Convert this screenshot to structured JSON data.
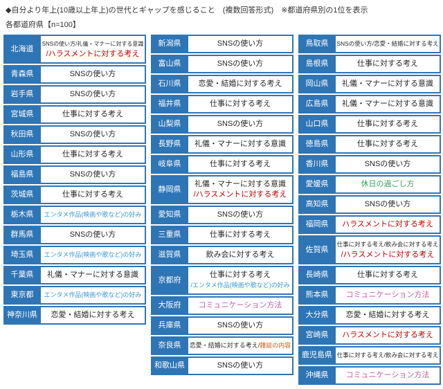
{
  "header": {
    "title": "◆自分より年上(10歳以上年上)の世代とギャップを感じること　(複数回答形式)　※都道府県別の1位を表示",
    "subtitle": "各都道府県【n=100】"
  },
  "palette": {
    "default": "#262626",
    "red": "#c00000",
    "blue": "#3399d6",
    "pink": "#c0609f",
    "orange": "#c55a11",
    "green": "#2fa05a",
    "header_bg": "#2e75b6",
    "border": "#2e75b6"
  },
  "chart_data": {
    "type": "table",
    "title": "自分より年上(10歳以上年上)の世代とギャップを感じること (複数回答形式) 都道府県別の1位",
    "sample_note": "各都道府県【n=100】",
    "columns": [
      {
        "rows": [
          {
            "pref": "北海道",
            "lines": [
              [
                {
                  "t": "SNSの使い方/礼儀・マナーに対する意識",
                  "c": "default"
                }
              ],
              [
                {
                  "t": "/ハラスメントに対する考え",
                  "c": "red"
                }
              ]
            ]
          },
          {
            "pref": "青森県",
            "lines": [
              [
                {
                  "t": "SNSの使い方",
                  "c": "default"
                }
              ]
            ]
          },
          {
            "pref": "岩手県",
            "lines": [
              [
                {
                  "t": "SNSの使い方",
                  "c": "default"
                }
              ]
            ]
          },
          {
            "pref": "宮城県",
            "lines": [
              [
                {
                  "t": "仕事に対する考え",
                  "c": "default"
                }
              ]
            ]
          },
          {
            "pref": "秋田県",
            "lines": [
              [
                {
                  "t": "SNSの使い方",
                  "c": "default"
                }
              ]
            ]
          },
          {
            "pref": "山形県",
            "lines": [
              [
                {
                  "t": "仕事に対する考え",
                  "c": "default"
                }
              ]
            ]
          },
          {
            "pref": "福島県",
            "lines": [
              [
                {
                  "t": "SNSの使い方",
                  "c": "default"
                }
              ]
            ]
          },
          {
            "pref": "茨城県",
            "lines": [
              [
                {
                  "t": "仕事に対する考え",
                  "c": "default"
                }
              ]
            ]
          },
          {
            "pref": "栃木県",
            "lines": [
              [
                {
                  "t": "エンタメ作品(映画や歌など)の好み",
                  "c": "blue"
                }
              ]
            ]
          },
          {
            "pref": "群馬県",
            "lines": [
              [
                {
                  "t": "SNSの使い方",
                  "c": "default"
                }
              ]
            ]
          },
          {
            "pref": "埼玉県",
            "lines": [
              [
                {
                  "t": "エンタメ作品(映画や歌など)の好み",
                  "c": "blue"
                }
              ]
            ]
          },
          {
            "pref": "千葉県",
            "lines": [
              [
                {
                  "t": "礼儀・マナーに対する意識",
                  "c": "default"
                }
              ]
            ]
          },
          {
            "pref": "東京都",
            "lines": [
              [
                {
                  "t": "エンタメ作品(映画や歌など)の好み",
                  "c": "blue"
                }
              ]
            ]
          },
          {
            "pref": "神奈川県",
            "lines": [
              [
                {
                  "t": "恋愛・結婚に対する考え",
                  "c": "default"
                }
              ]
            ]
          }
        ]
      },
      {
        "rows": [
          {
            "pref": "新潟県",
            "lines": [
              [
                {
                  "t": "SNSの使い方",
                  "c": "default"
                }
              ]
            ]
          },
          {
            "pref": "富山県",
            "lines": [
              [
                {
                  "t": "SNSの使い方",
                  "c": "default"
                }
              ]
            ]
          },
          {
            "pref": "石川県",
            "lines": [
              [
                {
                  "t": "恋愛・結婚に対する考え",
                  "c": "default"
                }
              ]
            ]
          },
          {
            "pref": "福井県",
            "lines": [
              [
                {
                  "t": "仕事に対する考え",
                  "c": "default"
                }
              ]
            ]
          },
          {
            "pref": "山梨県",
            "lines": [
              [
                {
                  "t": "SNSの使い方",
                  "c": "default"
                }
              ]
            ]
          },
          {
            "pref": "長野県",
            "lines": [
              [
                {
                  "t": "礼儀・マナーに対する意識",
                  "c": "default"
                }
              ]
            ]
          },
          {
            "pref": "岐阜県",
            "lines": [
              [
                {
                  "t": "仕事に対する考え",
                  "c": "default"
                }
              ]
            ]
          },
          {
            "pref": "静岡県",
            "lines": [
              [
                {
                  "t": "礼儀・マナーに対する意識",
                  "c": "default"
                }
              ],
              [
                {
                  "t": "/ハラスメントに対する考え",
                  "c": "red"
                }
              ]
            ]
          },
          {
            "pref": "愛知県",
            "lines": [
              [
                {
                  "t": "SNSの使い方",
                  "c": "default"
                }
              ]
            ]
          },
          {
            "pref": "三重県",
            "lines": [
              [
                {
                  "t": "仕事に対する考え",
                  "c": "default"
                }
              ]
            ]
          },
          {
            "pref": "滋賀県",
            "lines": [
              [
                {
                  "t": "飲み会に対する考え",
                  "c": "default"
                }
              ]
            ]
          },
          {
            "pref": "京都府",
            "lines": [
              [
                {
                  "t": "仕事に対する考え",
                  "c": "default"
                }
              ],
              [
                {
                  "t": "/エンタメ作品(映画や歌など)の好み",
                  "c": "blue"
                }
              ]
            ]
          },
          {
            "pref": "大阪府",
            "lines": [
              [
                {
                  "t": "コミュニケーション方法",
                  "c": "pink"
                }
              ]
            ]
          },
          {
            "pref": "兵庫県",
            "lines": [
              [
                {
                  "t": "SNSの使い方",
                  "c": "default"
                }
              ]
            ]
          },
          {
            "pref": "奈良県",
            "lines": [
              [
                {
                  "t": "恋愛・結婚に対する考え/",
                  "c": "default"
                },
                {
                  "t": "雑談の内容",
                  "c": "orange"
                }
              ]
            ]
          },
          {
            "pref": "和歌山県",
            "lines": [
              [
                {
                  "t": "SNSの使い方",
                  "c": "default"
                }
              ]
            ]
          }
        ]
      },
      {
        "rows": [
          {
            "pref": "鳥取県",
            "lines": [
              [
                {
                  "t": "SNSの使い方/恋愛・結婚に対する考え",
                  "c": "default"
                }
              ]
            ]
          },
          {
            "pref": "島根県",
            "lines": [
              [
                {
                  "t": "仕事に対する考え",
                  "c": "default"
                }
              ]
            ]
          },
          {
            "pref": "岡山県",
            "lines": [
              [
                {
                  "t": "礼儀・マナーに対する意識",
                  "c": "default"
                }
              ]
            ]
          },
          {
            "pref": "広島県",
            "lines": [
              [
                {
                  "t": "礼儀・マナーに対する意識",
                  "c": "default"
                }
              ]
            ]
          },
          {
            "pref": "山口県",
            "lines": [
              [
                {
                  "t": "仕事に対する考え",
                  "c": "default"
                }
              ]
            ]
          },
          {
            "pref": "徳島県",
            "lines": [
              [
                {
                  "t": "仕事に対する考え",
                  "c": "default"
                }
              ]
            ]
          },
          {
            "pref": "香川県",
            "lines": [
              [
                {
                  "t": "SNSの使い方",
                  "c": "default"
                }
              ]
            ]
          },
          {
            "pref": "愛媛県",
            "lines": [
              [
                {
                  "t": "休日の過ごし方",
                  "c": "green"
                }
              ]
            ]
          },
          {
            "pref": "高知県",
            "lines": [
              [
                {
                  "t": "SNSの使い方",
                  "c": "default"
                }
              ]
            ]
          },
          {
            "pref": "福岡県",
            "lines": [
              [
                {
                  "t": "ハラスメントに対する考え",
                  "c": "red"
                }
              ]
            ]
          },
          {
            "pref": "佐賀県",
            "lines": [
              [
                {
                  "t": "仕事に対する考え/飲み会に対する考え",
                  "c": "default"
                }
              ],
              [
                {
                  "t": "/ハラスメントに対する考え",
                  "c": "red"
                }
              ]
            ]
          },
          {
            "pref": "長崎県",
            "lines": [
              [
                {
                  "t": "仕事に対する考え",
                  "c": "default"
                }
              ]
            ]
          },
          {
            "pref": "熊本県",
            "lines": [
              [
                {
                  "t": "コミュニケーション方法",
                  "c": "pink"
                }
              ]
            ]
          },
          {
            "pref": "大分県",
            "lines": [
              [
                {
                  "t": "恋愛・結婚に対する考え",
                  "c": "default"
                }
              ]
            ]
          },
          {
            "pref": "宮崎県",
            "lines": [
              [
                {
                  "t": "ハラスメントに対する考え",
                  "c": "red"
                }
              ]
            ]
          },
          {
            "pref": "鹿児島県",
            "lines": [
              [
                {
                  "t": "仕事に対する考え/飲み会に対する考え",
                  "c": "default"
                }
              ]
            ]
          },
          {
            "pref": "沖縄県",
            "lines": [
              [
                {
                  "t": "コミュニケーション方法",
                  "c": "pink"
                }
              ]
            ]
          }
        ]
      }
    ]
  }
}
